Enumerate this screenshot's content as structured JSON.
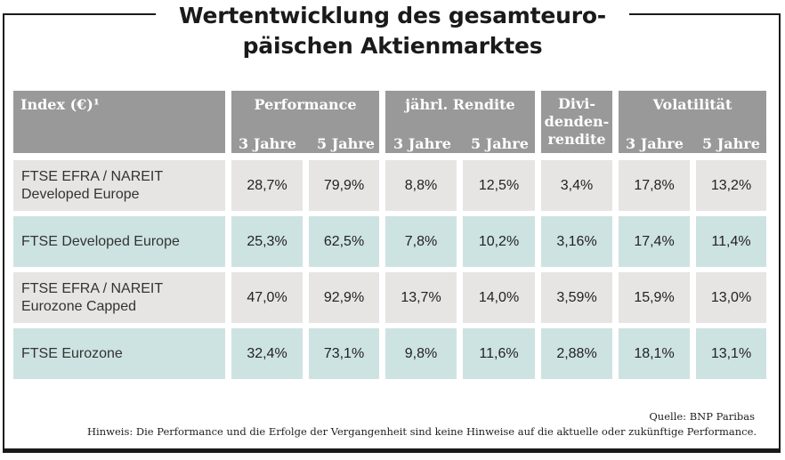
{
  "title_line1": "Wertentwicklung des gesamteuro-",
  "title_line2": "päischen Aktienmarktes",
  "header": {
    "index": "Index (€)¹",
    "performance": "Performance",
    "rendite": "jährl. Rendite",
    "dividenden_l1": "Divi-",
    "dividenden_l2": "denden-",
    "dividenden_l3": "rendite",
    "volatilitaet": "Volatilität",
    "y3": "3 Jahre",
    "y5": "5 Jahre"
  },
  "rows": [
    {
      "name_l1": "FTSE EFRA / NAREIT",
      "name_l2": "Developed Europe",
      "values": [
        "28,7%",
        "79,9%",
        "8,8%",
        "12,5%",
        "3,4%",
        "17,8%",
        "13,2%"
      ]
    },
    {
      "name_l1": "FTSE Developed Europe",
      "name_l2": "",
      "values": [
        "25,3%",
        "62,5%",
        "7,8%",
        "10,2%",
        "3,16%",
        "17,4%",
        "11,4%"
      ]
    },
    {
      "name_l1": "FTSE EFRA / NAREIT",
      "name_l2": "Eurozone Capped",
      "values": [
        "47,0%",
        "92,9%",
        "13,7%",
        "14,0%",
        "3,59%",
        "15,9%",
        "13,0%"
      ]
    },
    {
      "name_l1": "FTSE Eurozone",
      "name_l2": "",
      "values": [
        "32,4%",
        "73,1%",
        "9,8%",
        "11,6%",
        "2,88%",
        "18,1%",
        "13,1%"
      ]
    }
  ],
  "source": "Quelle: BNP Paribas",
  "note": "Hinweis: Die Performance und die Erfolge der Vergangenheit sind keine Hinweise auf die aktuelle oder zukünftige Performance."
}
